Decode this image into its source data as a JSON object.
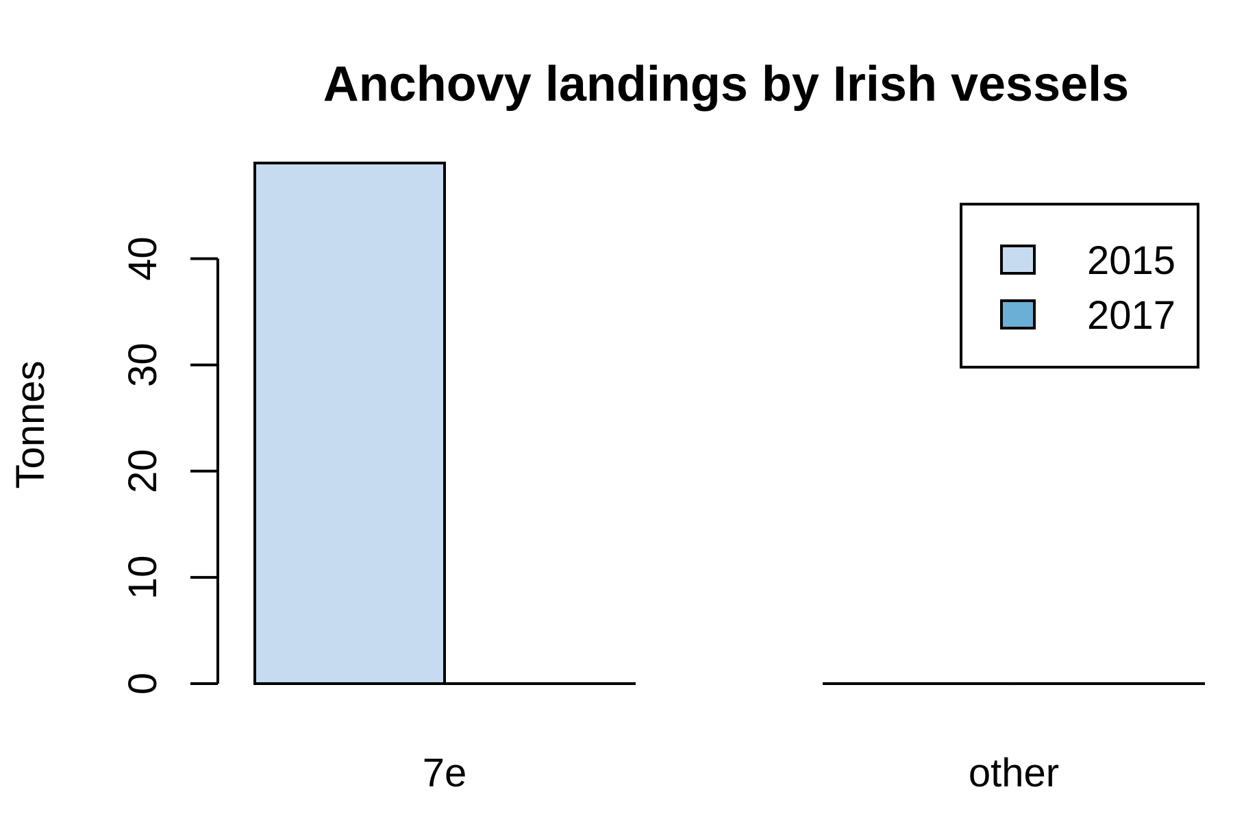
{
  "chart_data": {
    "type": "bar",
    "title": "Anchovy landings by Irish vessels",
    "xlabel": "",
    "ylabel": "Tonnes",
    "categories": [
      "7e",
      "other"
    ],
    "series": [
      {
        "name": "2015",
        "values": [
          49,
          0
        ],
        "color": "#c6dbef"
      },
      {
        "name": "2017",
        "values": [
          0,
          0
        ],
        "color": "#6baed6"
      }
    ],
    "yticks": [
      0,
      10,
      20,
      30,
      40
    ],
    "ylim": [
      0,
      49
    ],
    "grid": false,
    "legend_position": "top-right"
  }
}
